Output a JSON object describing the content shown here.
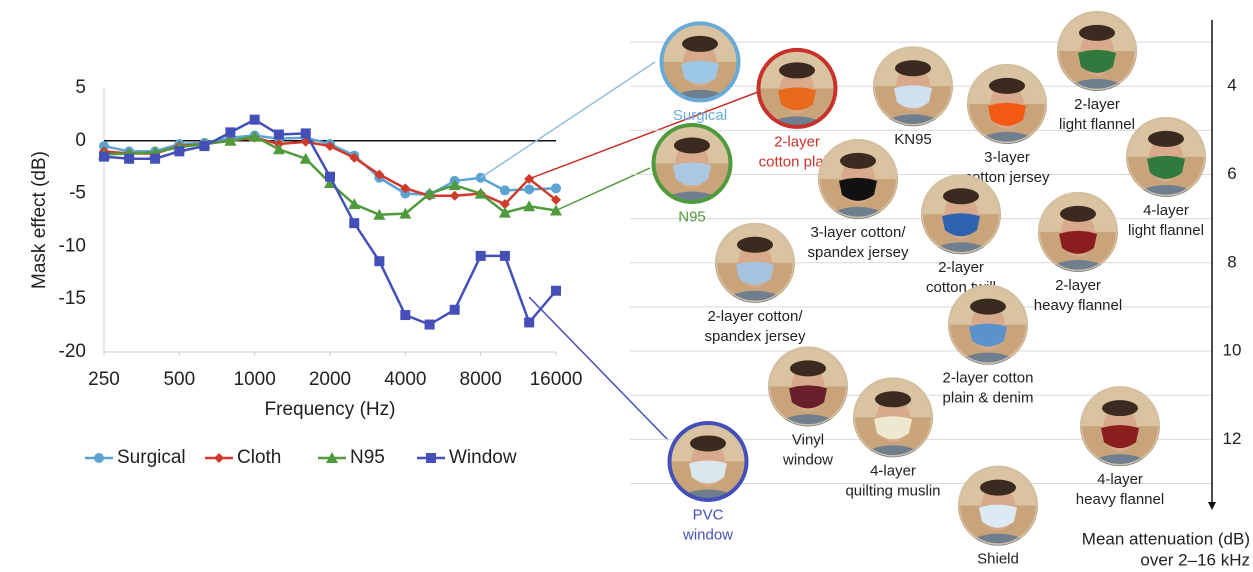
{
  "chart_data": [
    {
      "type": "line",
      "y_label": "Mask effect (dB)",
      "x_label": "Frequency (Hz)",
      "x": [
        250,
        315,
        400,
        500,
        630,
        800,
        1000,
        1250,
        1600,
        2000,
        2500,
        3150,
        4000,
        5000,
        6300,
        8000,
        10000,
        12500,
        16000
      ],
      "xscale": "log",
      "xlim": [
        250,
        16000
      ],
      "xticks": [
        250,
        500,
        1000,
        2000,
        4000,
        8000,
        16000
      ],
      "ylim": [
        -20,
        5
      ],
      "yticks": [
        5,
        0,
        -5,
        -10,
        -15,
        -20
      ],
      "legend": "bottom",
      "series": [
        {
          "name": "Surgical",
          "color": "#5ba3d0",
          "marker": "circle",
          "values": [
            -0.5,
            -1,
            -1,
            -0.3,
            -0.2,
            0.3,
            0.5,
            0.2,
            0.3,
            -0.3,
            -1.4,
            -3.5,
            -5,
            -5.1,
            -3.8,
            -3.5,
            -4.7,
            -4.6,
            -4.5
          ]
        },
        {
          "name": "Cloth",
          "color": "#d03a2a",
          "marker": "diamond",
          "values": [
            -1,
            -1.2,
            -1.2,
            -0.5,
            -0.3,
            0,
            0.3,
            -0.3,
            -0.1,
            -0.5,
            -1.6,
            -3.2,
            -4.5,
            -5.2,
            -5.2,
            -5,
            -6,
            -3.6,
            -5.6
          ]
        },
        {
          "name": "N95",
          "color": "#4f9a3c",
          "marker": "triangle",
          "values": [
            -1.3,
            -1.2,
            -1.1,
            -0.6,
            -0.3,
            0,
            0.4,
            -0.8,
            -1.7,
            -4,
            -6,
            -7,
            -6.9,
            -5,
            -4.2,
            -5,
            -6.8,
            -6.2,
            -6.6
          ]
        },
        {
          "name": "Window",
          "color": "#4450b8",
          "marker": "square",
          "values": [
            -1.5,
            -1.7,
            -1.7,
            -1,
            -0.5,
            0.8,
            2,
            0.6,
            0.7,
            -3.4,
            -7.8,
            -11.4,
            -16.5,
            -17.4,
            -16,
            -10.9,
            -10.9,
            -17.2,
            -14.2
          ]
        }
      ]
    },
    {
      "type": "scatter",
      "y_label": [
        "Mean attenuation (dB)",
        "over 2–16 kHz"
      ],
      "ylim": [
        2.5,
        13.6
      ],
      "yticks": [
        4,
        6,
        8,
        10,
        12
      ],
      "minor_ticks": [
        3,
        4,
        5,
        6,
        7,
        8,
        9,
        10,
        11,
        12,
        13
      ],
      "points": [
        {
          "label": [
            "Surgical"
          ],
          "value": 3.45,
          "mask_color": "#9cc8e6",
          "color": "#6aaad6"
        },
        {
          "label": [
            "2-layer",
            "cotton plain"
          ],
          "value": 4.05,
          "mask_color": "#e86a1c",
          "color": "#c8322a"
        },
        {
          "label": [
            "KN95"
          ],
          "value": 4.0,
          "mask_color": "#cfe0ee"
        },
        {
          "label": [
            "3-layer",
            "cotton jersey"
          ],
          "value": 4.4,
          "mask_color": "#f25a14"
        },
        {
          "label": [
            "2-layer",
            "light flannel"
          ],
          "value": 3.2,
          "mask_color": "#2f7a3c"
        },
        {
          "label": [
            "4-layer",
            "light flannel"
          ],
          "value": 5.6,
          "mask_color": "#2f7a3c"
        },
        {
          "label": [
            "N95"
          ],
          "value": 5.75,
          "mask_color": "#a9c8e2",
          "color": "#4f9a3c"
        },
        {
          "label": [
            "3-layer cotton/",
            "spandex jersey"
          ],
          "value": 6.1,
          "mask_color": "#111111"
        },
        {
          "label": [
            "2-layer",
            "cotton twill"
          ],
          "value": 6.9,
          "mask_color": "#2f63b0"
        },
        {
          "label": [
            "2-layer",
            "heavy flannel"
          ],
          "value": 7.3,
          "mask_color": "#8a1e1e"
        },
        {
          "label": [
            "2-layer cotton/",
            "spandex jersey"
          ],
          "value": 8.0,
          "mask_color": "#a5c4e0"
        },
        {
          "label": [
            "2-layer cotton",
            "plain & denim"
          ],
          "value": 9.4,
          "mask_color": "#5a93cc"
        },
        {
          "label": [
            "Vinyl",
            "window"
          ],
          "value": 10.8,
          "mask_color": "#6a1f2c"
        },
        {
          "label": [
            "4-layer",
            "quilting muslin"
          ],
          "value": 11.5,
          "mask_color": "#efe8d0"
        },
        {
          "label": [
            "4-layer",
            "heavy flannel"
          ],
          "value": 11.7,
          "mask_color": "#8a1e1e"
        },
        {
          "label": [
            "PVC",
            "window"
          ],
          "value": 12.5,
          "mask_color": "#d8e6ee",
          "color": "#4450b8"
        },
        {
          "label": [
            "Shield"
          ],
          "value": 13.5,
          "mask_color": "#dceaf4"
        }
      ]
    }
  ]
}
